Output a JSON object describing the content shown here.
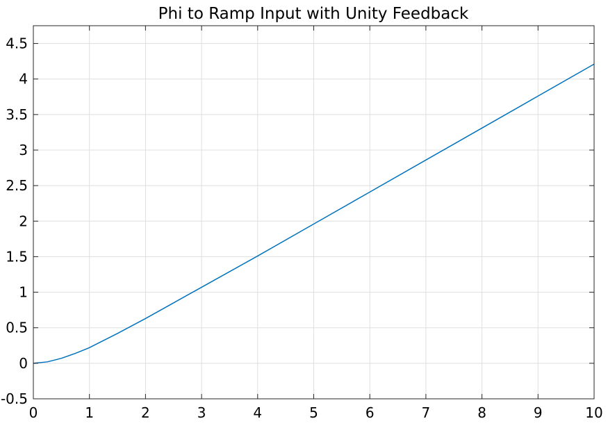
{
  "chart_data": {
    "type": "line",
    "title": "Phi to Ramp Input with Unity Feedback",
    "xlabel": "",
    "ylabel": "",
    "xlim": [
      0,
      10
    ],
    "ylim": [
      -0.5,
      4.75
    ],
    "x_ticks": [
      0,
      1,
      2,
      3,
      4,
      5,
      6,
      7,
      8,
      9,
      10
    ],
    "x_tick_labels": [
      "0",
      "1",
      "2",
      "3",
      "4",
      "5",
      "6",
      "7",
      "8",
      "9",
      "10"
    ],
    "y_ticks": [
      -0.5,
      0,
      0.5,
      1,
      1.5,
      2,
      2.5,
      3,
      3.5,
      4,
      4.5
    ],
    "y_tick_labels": [
      "-0.5",
      "0",
      "0.5",
      "1",
      "1.5",
      "2",
      "2.5",
      "3",
      "3.5",
      "4",
      "4.5"
    ],
    "grid": true,
    "series": [
      {
        "color": "#0072BD",
        "x": [
          0,
          0.25,
          0.5,
          0.75,
          1,
          1.5,
          2,
          2.5,
          3,
          4,
          5,
          6,
          7,
          8,
          9,
          10
        ],
        "y": [
          0,
          0.02,
          0.07,
          0.14,
          0.22,
          0.42,
          0.63,
          0.85,
          1.07,
          1.51,
          1.96,
          2.41,
          2.86,
          3.31,
          3.76,
          4.21
        ]
      }
    ]
  }
}
